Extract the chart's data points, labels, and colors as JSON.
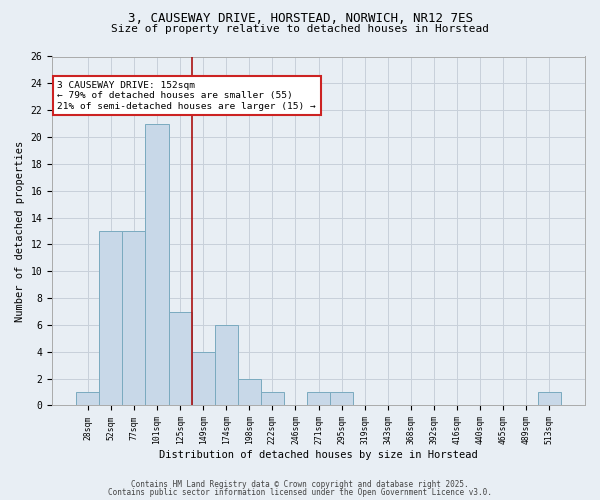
{
  "title_line1": "3, CAUSEWAY DRIVE, HORSTEAD, NORWICH, NR12 7ES",
  "title_line2": "Size of property relative to detached houses in Horstead",
  "xlabel": "Distribution of detached houses by size in Horstead",
  "ylabel": "Number of detached properties",
  "bar_labels": [
    "28sqm",
    "52sqm",
    "77sqm",
    "101sqm",
    "125sqm",
    "149sqm",
    "174sqm",
    "198sqm",
    "222sqm",
    "246sqm",
    "271sqm",
    "295sqm",
    "319sqm",
    "343sqm",
    "368sqm",
    "392sqm",
    "416sqm",
    "440sqm",
    "465sqm",
    "489sqm",
    "513sqm"
  ],
  "bar_values": [
    1,
    13,
    13,
    21,
    7,
    4,
    6,
    2,
    1,
    0,
    1,
    1,
    0,
    0,
    0,
    0,
    0,
    0,
    0,
    0,
    1
  ],
  "bar_color": "#c8d8e8",
  "bar_edge_color": "#7aaabf",
  "property_line_x": 4.5,
  "annotation_text": "3 CAUSEWAY DRIVE: 152sqm\n← 79% of detached houses are smaller (55)\n21% of semi-detached houses are larger (15) →",
  "annotation_box_color": "#ffffff",
  "annotation_box_edge_color": "#cc2222",
  "vline_color": "#aa1111",
  "ylim": [
    0,
    26
  ],
  "yticks": [
    0,
    2,
    4,
    6,
    8,
    10,
    12,
    14,
    16,
    18,
    20,
    22,
    24,
    26
  ],
  "grid_color": "#c8d0da",
  "bg_color": "#e8eef4",
  "footnote_line1": "Contains HM Land Registry data © Crown copyright and database right 2025.",
  "footnote_line2": "Contains public sector information licensed under the Open Government Licence v3.0."
}
